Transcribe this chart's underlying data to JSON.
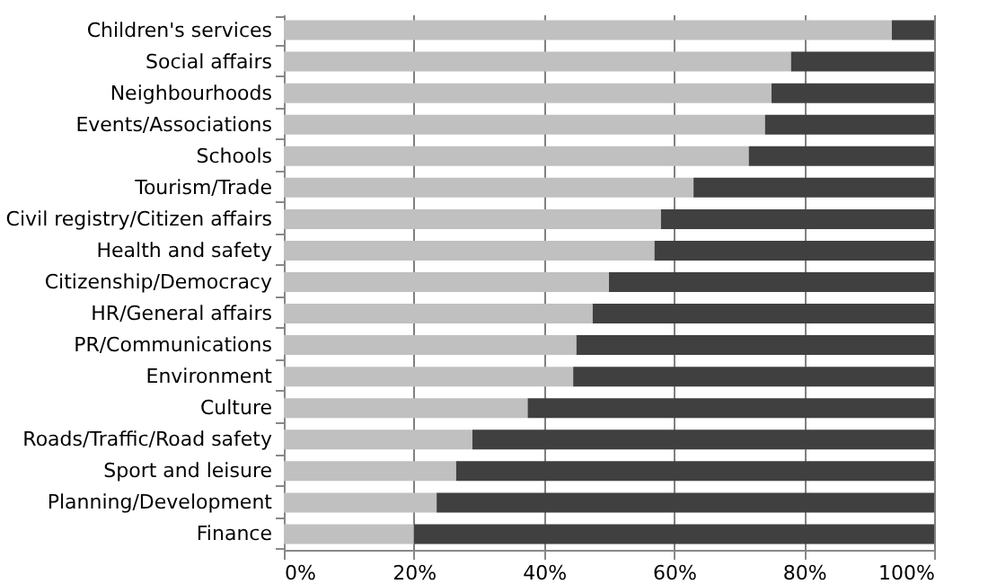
{
  "chart_data": {
    "type": "bar",
    "orientation": "horizontal",
    "stacked": true,
    "grid": "x",
    "legend": false,
    "categories": [
      "Children's services",
      "Social affairs",
      "Neighbourhoods",
      "Events/Associations",
      "Schools",
      "Tourism/Trade",
      "Civil registry/Citizen affairs",
      "Health and safety",
      "Citizenship/Democracy",
      "HR/General affairs",
      "PR/Communications",
      "Environment",
      "Culture",
      "Roads/Traffic/Road safety",
      "Sport and leisure",
      "Planning/Development",
      "Finance"
    ],
    "series": [
      {
        "color": "#c0c0c0",
        "values": [
          93.5,
          78,
          75,
          74,
          71.5,
          63,
          58,
          57,
          50,
          47.5,
          45,
          44.5,
          37.5,
          29,
          26.5,
          23.5,
          20
        ]
      },
      {
        "color": "#404040",
        "values": [
          6.5,
          22,
          25,
          26,
          28.5,
          37,
          42,
          43,
          50,
          52.5,
          55,
          55.5,
          62.5,
          71,
          73.5,
          76.5,
          80
        ]
      }
    ],
    "xlim": [
      0,
      100
    ],
    "xticks": [
      {
        "value": 0,
        "label": "0%"
      },
      {
        "value": 20,
        "label": "20%"
      },
      {
        "value": 40,
        "label": "40%"
      },
      {
        "value": 60,
        "label": "60%"
      },
      {
        "value": 80,
        "label": "80%"
      },
      {
        "value": 100,
        "label": "100%"
      }
    ]
  }
}
